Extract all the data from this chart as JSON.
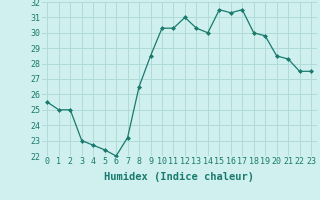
{
  "x": [
    0,
    1,
    2,
    3,
    4,
    5,
    6,
    7,
    8,
    9,
    10,
    11,
    12,
    13,
    14,
    15,
    16,
    17,
    18,
    19,
    20,
    21,
    22,
    23
  ],
  "y": [
    25.5,
    25.0,
    25.0,
    23.0,
    22.7,
    22.4,
    22.0,
    23.2,
    26.5,
    28.5,
    30.3,
    30.3,
    31.0,
    30.3,
    30.0,
    31.5,
    31.3,
    31.5,
    30.0,
    29.8,
    28.5,
    28.3,
    27.5,
    27.5
  ],
  "ylim": [
    22,
    32
  ],
  "xlim": [
    -0.5,
    23.5
  ],
  "yticks": [
    22,
    23,
    24,
    25,
    26,
    27,
    28,
    29,
    30,
    31,
    32
  ],
  "xticks": [
    0,
    1,
    2,
    3,
    4,
    5,
    6,
    7,
    8,
    9,
    10,
    11,
    12,
    13,
    14,
    15,
    16,
    17,
    18,
    19,
    20,
    21,
    22,
    23
  ],
  "xlabel": "Humidex (Indice chaleur)",
  "line_color": "#1a7a6e",
  "marker": "D",
  "marker_size": 2.0,
  "background_color": "#cff0ee",
  "grid_color": "#b0dbd8",
  "tick_label_fontsize": 6.0,
  "xlabel_fontsize": 7.5
}
